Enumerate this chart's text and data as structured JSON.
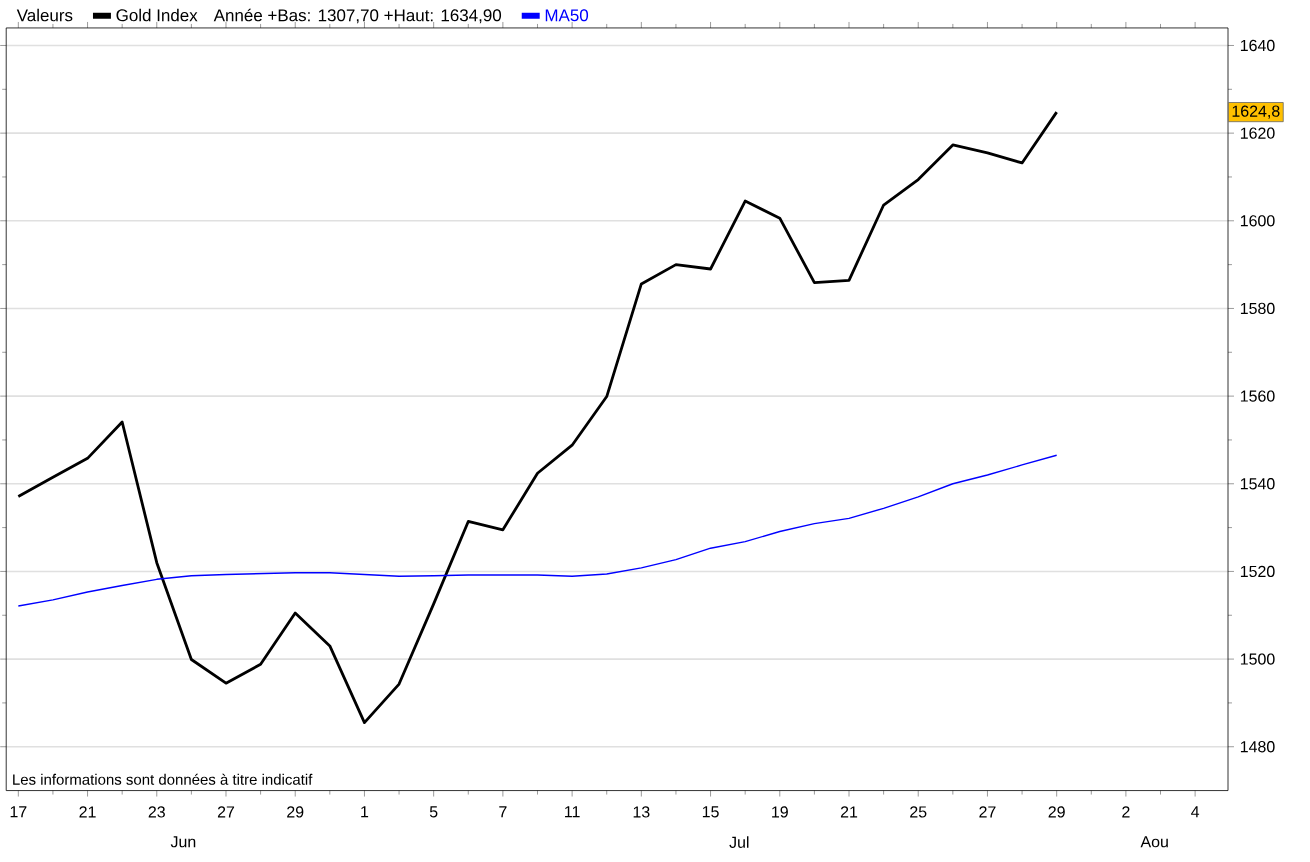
{
  "chart_data": {
    "type": "line",
    "legend_title": "Valeurs",
    "categories": [
      "17",
      null,
      "21",
      null,
      "23",
      null,
      "27",
      null,
      "29",
      null,
      "1",
      null,
      "5",
      null,
      "7",
      null,
      "11",
      null,
      "13",
      null,
      "15",
      null,
      "19",
      null,
      "21",
      null,
      "25",
      null,
      "27",
      null,
      "29",
      null,
      "2",
      null,
      "4"
    ],
    "series": [
      {
        "name": "Gold Index",
        "color": "#000000",
        "values": [
          1537.1,
          1541.5,
          1545.8,
          1554.1,
          1522,
          1499.9,
          1494.5,
          1498.8,
          1510.5,
          1503,
          1485.5,
          1494.3,
          1512.6,
          1531.4,
          1529.5,
          1542.4,
          1548.8,
          1559.9,
          1585.6,
          1590,
          1589,
          1604.5,
          1600.6,
          1585.9,
          1586.4,
          1603.6,
          1609.4,
          1617.3,
          1615.5,
          1613.2,
          1624.8,
          null,
          null,
          null,
          null
        ]
      },
      {
        "name": "MA50",
        "color": "#0000ff",
        "values": [
          1512.1,
          1513.5,
          1515.3,
          1516.8,
          1518.2,
          1519,
          1519.3,
          1519.5,
          1519.7,
          1519.7,
          1519.3,
          1518.9,
          1519,
          1519.2,
          1519.2,
          1519.2,
          1518.9,
          1519.4,
          1520.8,
          1522.7,
          1525.3,
          1526.8,
          1529.1,
          1530.9,
          1532.1,
          1534.4,
          1537,
          1540,
          1542,
          1544.3,
          1546.5,
          null,
          null,
          null,
          null
        ]
      }
    ],
    "ylim": [
      1470,
      1644
    ],
    "yticks": [
      1480,
      1500,
      1520,
      1540,
      1560,
      1580,
      1600,
      1620,
      1640
    ],
    "grid": "y",
    "legend": "top",
    "annotations": [
      "Année +Bas: 1307,70 +Haut: 1634,90",
      "Les informations sont données à titre indicatif",
      "Jun",
      "Jul",
      "Aou",
      {
        "text": "1624,8",
        "y": 1624.8
      }
    ]
  }
}
